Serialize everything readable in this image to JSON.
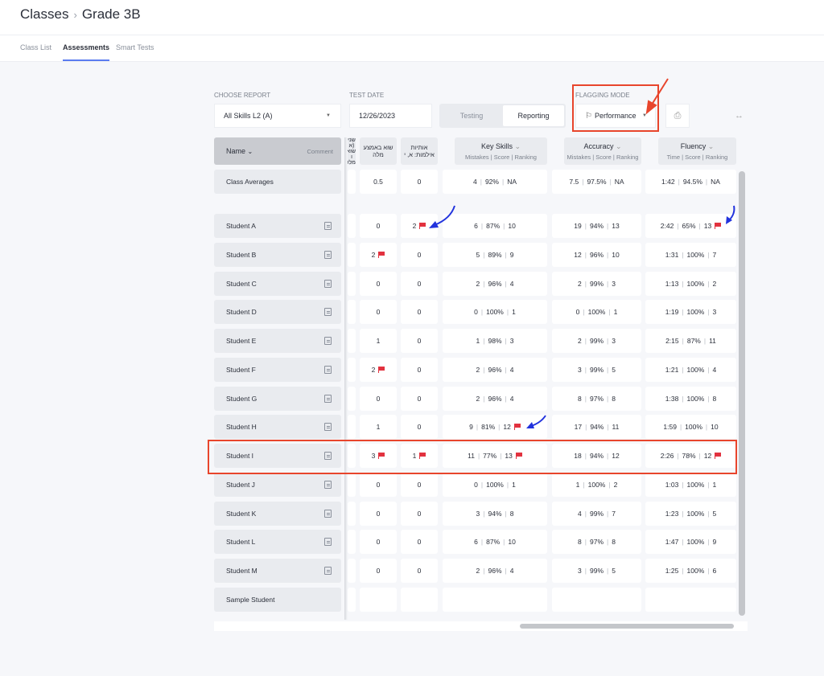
{
  "header": {
    "breadcrumb_root": "Classes",
    "breadcrumb_sep": "›",
    "breadcrumb_current": "Grade 3B"
  },
  "tabs": [
    {
      "label": "Class List"
    },
    {
      "label": "Assessments",
      "active": true
    },
    {
      "label": "Smart Tests"
    }
  ],
  "controls": {
    "choose_report_label": "CHOOSE REPORT",
    "report_value": "All Skills L2 (A)",
    "test_date_label": "TEST DATE",
    "test_date_value": "12/26/2023",
    "mode_testing": "Testing",
    "mode_reporting": "Reporting",
    "flagging_label": "FLAGGING MODE",
    "flagging_value": "Performance",
    "icons": [
      "flag-icon",
      "chevron-down-icon",
      "printer-icon",
      "expand-horizontal-icon"
    ]
  },
  "columns": {
    "name": "Name",
    "comment": "Comment",
    "hebrew1": "שני (א שואים ו מלו",
    "hebrew2": "שוא באמצע מלה",
    "hebrew3": "אותיות אילמות: א, י",
    "key_skills": "Key Skills",
    "key_skills_sub": "Mistakes | Score | Ranking",
    "accuracy": "Accuracy",
    "accuracy_sub": "Mistakes | Score | Ranking",
    "fluency": "Fluency",
    "fluency_sub": "Time | Score | Ranking"
  },
  "class_averages": {
    "name": "Class Averages",
    "c2": "0.5",
    "c3": "0",
    "key": "4 | 92% | NA",
    "acc": "7.5 | 97.5% | NA",
    "flu": "1:42 | 94.5% | NA"
  },
  "students": [
    {
      "name": "Student A",
      "c2": "0",
      "c3": "2",
      "c3f": true,
      "key": "6 | 87% | 10",
      "acc": "19 | 94% | 13",
      "flu": "2:42 | 65% | 13",
      "fluf": true
    },
    {
      "name": "Student B",
      "c2": "2",
      "c2f": true,
      "c3": "0",
      "key": "5 | 89% | 9",
      "acc": "12 | 96% | 10",
      "flu": "1:31 | 100% | 7"
    },
    {
      "name": "Student C",
      "c2": "0",
      "c3": "0",
      "key": "2 | 96% | 4",
      "acc": "2 | 99% | 3",
      "flu": "1:13 | 100% | 2"
    },
    {
      "name": "Student D",
      "c2": "0",
      "c3": "0",
      "key": "0 | 100% | 1",
      "acc": "0 | 100% | 1",
      "flu": "1:19 | 100% | 3"
    },
    {
      "name": "Student E",
      "c2": "1",
      "c3": "0",
      "key": "1 | 98% | 3",
      "acc": "2 | 99% | 3",
      "flu": "2:15 | 87% | 11"
    },
    {
      "name": "Student F",
      "c2": "2",
      "c2f": true,
      "c3": "0",
      "key": "2 | 96% | 4",
      "acc": "3 | 99% | 5",
      "flu": "1:21 | 100% | 4"
    },
    {
      "name": "Student G",
      "c2": "0",
      "c3": "0",
      "key": "2 | 96% | 4",
      "acc": "8 | 97% | 8",
      "flu": "1:38 | 100% | 8"
    },
    {
      "name": "Student H",
      "c2": "1",
      "c3": "0",
      "key": "9 | 81% | 12",
      "keyf": true,
      "acc": "17 | 94% | 11",
      "flu": "1:59 | 100% | 10"
    },
    {
      "name": "Student I",
      "c2": "3",
      "c2f": true,
      "c3": "1",
      "c3f": true,
      "key": "11 | 77% | 13",
      "keyf": true,
      "acc": "18 | 94% | 12",
      "flu": "2:26 | 78% | 12",
      "fluf": true
    },
    {
      "name": "Student J",
      "c2": "0",
      "c3": "0",
      "key": "0 | 100% | 1",
      "acc": "1 | 100% | 2",
      "flu": "1:03 | 100% | 1"
    },
    {
      "name": "Student K",
      "c2": "0",
      "c3": "0",
      "key": "3 | 94% | 8",
      "acc": "4 | 99% | 7",
      "flu": "1:23 | 100% | 5"
    },
    {
      "name": "Student L",
      "c2": "0",
      "c3": "0",
      "key": "6 | 87% | 10",
      "acc": "8 | 97% | 8",
      "flu": "1:47 | 100% | 9"
    },
    {
      "name": "Student M",
      "c2": "0",
      "c3": "0",
      "key": "2 | 96% | 4",
      "acc": "3 | 99% | 5",
      "flu": "1:25 | 100% | 6"
    },
    {
      "name": "Sample Student",
      "c2": "",
      "c3": "",
      "key": "",
      "acc": "",
      "flu": "",
      "nocomment": true
    }
  ],
  "colors": {
    "flag": "#e2323f",
    "accent": "#5b7cf0",
    "annotation_red": "#e8452c",
    "annotation_blue": "#2233dd"
  }
}
